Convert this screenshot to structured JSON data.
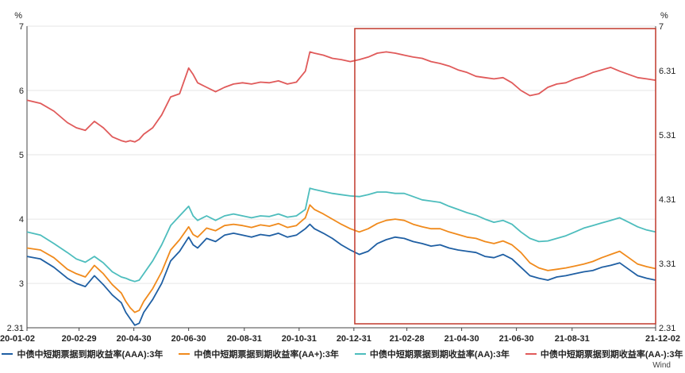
{
  "chart_data": {
    "type": "line",
    "y_unit_left": "%",
    "y_unit_right": "%",
    "ylim": [
      2.31,
      7
    ],
    "yticks_left": [
      "2.31",
      "3",
      "4",
      "5",
      "6",
      "7"
    ],
    "yticks_right": [
      "2.31",
      "3.31",
      "4.31",
      "5.31",
      "6.31",
      "7"
    ],
    "x_ticks": [
      "20-01-02",
      "20-02-29",
      "20-04-30",
      "20-06-30",
      "20-08-31",
      "20-10-31",
      "20-12-31",
      "21-02-28",
      "21-04-30",
      "21-06-30",
      "21-08-31",
      "21-12-02"
    ],
    "x_tick_positions": [
      0,
      58,
      119,
      180,
      242,
      303,
      364,
      423,
      484,
      545,
      607,
      700
    ],
    "highlight_box": {
      "from_day": 365,
      "to_day": 700,
      "color": "#c0392b"
    },
    "series": [
      {
        "name": "中债中短期票据到期收益率(AAA):3年",
        "color": "#1f5fa3",
        "x": [
          0,
          15,
          30,
          45,
          55,
          65,
          75,
          85,
          95,
          105,
          110,
          115,
          120,
          125,
          130,
          140,
          150,
          160,
          170,
          180,
          185,
          190,
          200,
          210,
          220,
          230,
          240,
          250,
          260,
          270,
          280,
          290,
          300,
          310,
          315,
          320,
          330,
          340,
          350,
          360,
          370,
          380,
          390,
          400,
          410,
          420,
          430,
          440,
          450,
          460,
          470,
          480,
          490,
          500,
          510,
          520,
          530,
          540,
          550,
          560,
          570,
          580,
          590,
          600,
          610,
          620,
          630,
          640,
          650,
          660,
          670,
          680,
          690,
          700
        ],
        "values": [
          3.42,
          3.38,
          3.25,
          3.08,
          3.0,
          2.95,
          3.12,
          2.98,
          2.82,
          2.7,
          2.55,
          2.45,
          2.35,
          2.38,
          2.55,
          2.75,
          3.0,
          3.35,
          3.5,
          3.72,
          3.6,
          3.55,
          3.7,
          3.65,
          3.75,
          3.78,
          3.75,
          3.72,
          3.76,
          3.74,
          3.78,
          3.72,
          3.75,
          3.85,
          3.92,
          3.85,
          3.78,
          3.7,
          3.6,
          3.52,
          3.45,
          3.5,
          3.62,
          3.68,
          3.72,
          3.7,
          3.65,
          3.62,
          3.58,
          3.6,
          3.55,
          3.52,
          3.5,
          3.48,
          3.42,
          3.4,
          3.45,
          3.38,
          3.25,
          3.12,
          3.08,
          3.05,
          3.1,
          3.12,
          3.15,
          3.18,
          3.2,
          3.25,
          3.28,
          3.32,
          3.22,
          3.12,
          3.08,
          3.05
        ]
      },
      {
        "name": "中债中短期票据到期收益率(AA+):3年",
        "color": "#f08a1c",
        "x": [
          0,
          15,
          30,
          45,
          55,
          65,
          75,
          85,
          95,
          105,
          110,
          115,
          120,
          125,
          130,
          140,
          150,
          160,
          170,
          180,
          185,
          190,
          200,
          210,
          220,
          230,
          240,
          250,
          260,
          270,
          280,
          290,
          300,
          310,
          315,
          320,
          330,
          340,
          350,
          360,
          370,
          380,
          390,
          400,
          410,
          420,
          430,
          440,
          450,
          460,
          470,
          480,
          490,
          500,
          510,
          520,
          530,
          540,
          550,
          560,
          570,
          580,
          590,
          600,
          610,
          620,
          630,
          640,
          650,
          660,
          670,
          680,
          690,
          700
        ],
        "values": [
          3.55,
          3.52,
          3.4,
          3.22,
          3.15,
          3.1,
          3.28,
          3.15,
          2.98,
          2.85,
          2.72,
          2.62,
          2.55,
          2.58,
          2.72,
          2.92,
          3.18,
          3.52,
          3.68,
          3.88,
          3.76,
          3.72,
          3.86,
          3.82,
          3.9,
          3.92,
          3.9,
          3.87,
          3.91,
          3.89,
          3.93,
          3.87,
          3.9,
          4.02,
          4.22,
          4.15,
          4.08,
          4.0,
          3.92,
          3.85,
          3.8,
          3.85,
          3.93,
          3.98,
          4.0,
          3.98,
          3.92,
          3.88,
          3.85,
          3.85,
          3.8,
          3.76,
          3.72,
          3.7,
          3.65,
          3.62,
          3.66,
          3.6,
          3.48,
          3.32,
          3.24,
          3.2,
          3.22,
          3.24,
          3.27,
          3.3,
          3.34,
          3.4,
          3.45,
          3.5,
          3.4,
          3.3,
          3.26,
          3.23
        ]
      },
      {
        "name": "中债中短期票据到期收益率(AA):3年",
        "color": "#4dbdbd",
        "x": [
          0,
          15,
          30,
          45,
          55,
          65,
          75,
          85,
          95,
          105,
          110,
          115,
          120,
          125,
          130,
          140,
          150,
          160,
          170,
          180,
          185,
          190,
          200,
          210,
          220,
          230,
          240,
          250,
          260,
          270,
          280,
          290,
          300,
          310,
          315,
          320,
          330,
          340,
          350,
          360,
          370,
          380,
          390,
          400,
          410,
          420,
          430,
          440,
          450,
          460,
          470,
          480,
          490,
          500,
          510,
          520,
          530,
          540,
          550,
          560,
          570,
          580,
          590,
          600,
          610,
          620,
          630,
          640,
          650,
          660,
          670,
          680,
          690,
          700
        ],
        "values": [
          3.8,
          3.75,
          3.62,
          3.48,
          3.38,
          3.33,
          3.42,
          3.32,
          3.18,
          3.1,
          3.08,
          3.05,
          3.03,
          3.05,
          3.15,
          3.35,
          3.6,
          3.9,
          4.05,
          4.2,
          4.05,
          3.98,
          4.05,
          3.98,
          4.05,
          4.08,
          4.05,
          4.02,
          4.05,
          4.04,
          4.08,
          4.03,
          4.05,
          4.15,
          4.48,
          4.46,
          4.43,
          4.4,
          4.38,
          4.36,
          4.35,
          4.38,
          4.42,
          4.42,
          4.4,
          4.4,
          4.35,
          4.3,
          4.28,
          4.26,
          4.2,
          4.15,
          4.1,
          4.06,
          4.0,
          3.95,
          3.98,
          3.92,
          3.8,
          3.7,
          3.65,
          3.66,
          3.7,
          3.74,
          3.8,
          3.86,
          3.9,
          3.94,
          3.98,
          4.02,
          3.95,
          3.88,
          3.83,
          3.8
        ]
      },
      {
        "name": "中债中短期票据到期收益率(AA-):3年",
        "color": "#e05a5a",
        "x": [
          0,
          15,
          30,
          45,
          55,
          65,
          75,
          85,
          95,
          105,
          110,
          115,
          120,
          125,
          130,
          140,
          150,
          160,
          170,
          180,
          185,
          190,
          200,
          210,
          220,
          230,
          240,
          250,
          260,
          270,
          280,
          290,
          300,
          310,
          315,
          320,
          330,
          340,
          350,
          360,
          370,
          380,
          390,
          400,
          410,
          420,
          430,
          440,
          450,
          460,
          470,
          480,
          490,
          500,
          510,
          520,
          530,
          540,
          550,
          560,
          570,
          580,
          590,
          600,
          610,
          620,
          630,
          640,
          650,
          660,
          670,
          680,
          690,
          700
        ],
        "values": [
          5.85,
          5.8,
          5.68,
          5.5,
          5.42,
          5.38,
          5.52,
          5.42,
          5.28,
          5.22,
          5.2,
          5.22,
          5.2,
          5.24,
          5.32,
          5.42,
          5.62,
          5.9,
          5.95,
          6.35,
          6.25,
          6.12,
          6.05,
          5.98,
          6.05,
          6.1,
          6.12,
          6.1,
          6.13,
          6.12,
          6.15,
          6.1,
          6.13,
          6.3,
          6.6,
          6.58,
          6.55,
          6.5,
          6.48,
          6.45,
          6.48,
          6.52,
          6.58,
          6.6,
          6.58,
          6.55,
          6.52,
          6.5,
          6.45,
          6.42,
          6.38,
          6.32,
          6.28,
          6.22,
          6.2,
          6.18,
          6.2,
          6.12,
          6.0,
          5.92,
          5.95,
          6.05,
          6.1,
          6.12,
          6.18,
          6.22,
          6.28,
          6.32,
          6.36,
          6.3,
          6.25,
          6.2,
          6.18,
          6.16
        ]
      }
    ]
  },
  "source_label": "Wind"
}
